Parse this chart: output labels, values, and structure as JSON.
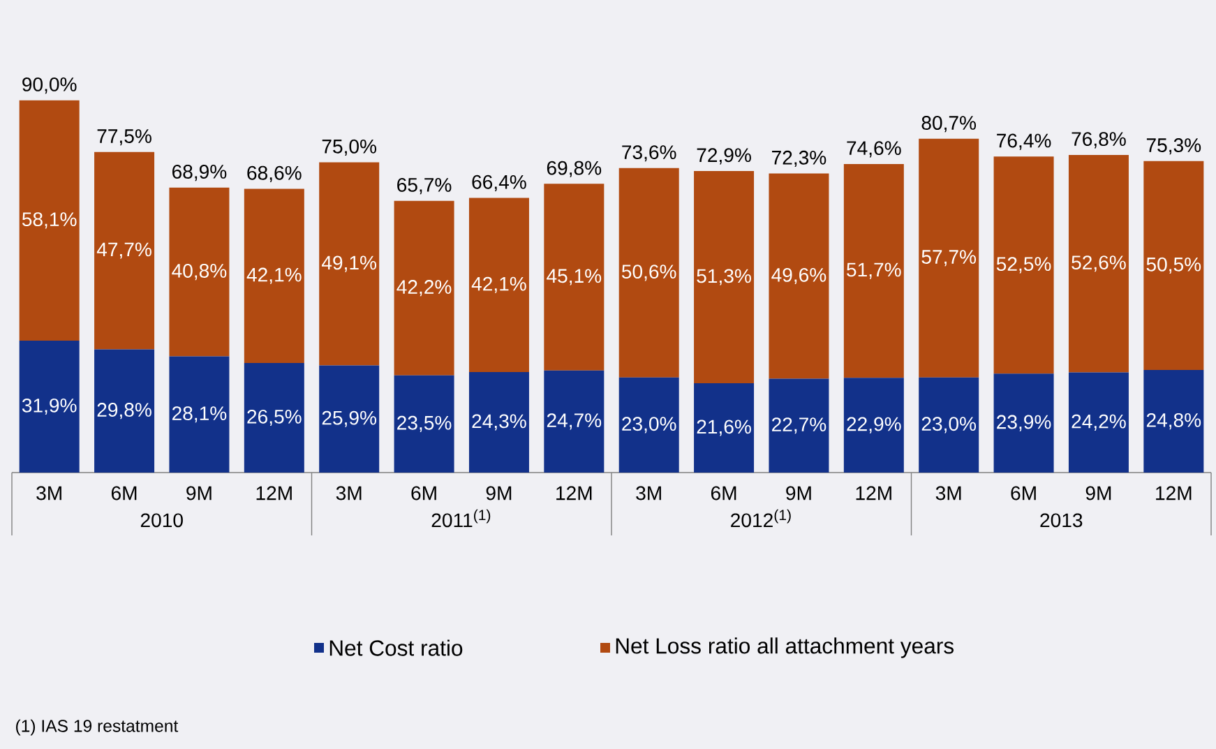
{
  "chart_data": {
    "type": "bar",
    "stacked": true,
    "legend": "bottom",
    "categories": [
      "3M",
      "6M",
      "9M",
      "12M",
      "3M",
      "6M",
      "9M",
      "12M",
      "3M",
      "6M",
      "9M",
      "12M",
      "3M",
      "6M",
      "9M",
      "12M"
    ],
    "series": [
      {
        "name": "Net Cost ratio",
        "color": "#12318a",
        "values": [
          31.9,
          29.8,
          28.1,
          26.5,
          25.9,
          23.5,
          24.3,
          24.7,
          23.0,
          21.6,
          22.7,
          22.9,
          23.0,
          23.9,
          24.2,
          24.8
        ],
        "value_labels": [
          "31,9%",
          "29,8%",
          "28,1%",
          "26,5%",
          "25,9%",
          "23,5%",
          "24,3%",
          "24,7%",
          "23,0%",
          "21,6%",
          "22,7%",
          "22,9%",
          "23,0%",
          "23,9%",
          "24,2%",
          "24,8%"
        ]
      },
      {
        "name": "Net Loss ratio all attachment years",
        "color": "#b14a11",
        "values": [
          58.1,
          47.7,
          40.8,
          42.1,
          49.1,
          42.2,
          42.1,
          45.1,
          50.6,
          51.3,
          49.6,
          51.7,
          57.7,
          52.5,
          52.6,
          50.5
        ],
        "value_labels": [
          "58,1%",
          "47,7%",
          "40,8%",
          "42,1%",
          "49,1%",
          "42,2%",
          "42,1%",
          "45,1%",
          "50,6%",
          "51,3%",
          "49,6%",
          "51,7%",
          "57,7%",
          "52,5%",
          "52,6%",
          "50,5%"
        ]
      }
    ],
    "totals": [
      "90,0%",
      "77,5%",
      "68,9%",
      "68,6%",
      "75,0%",
      "65,7%",
      "66,4%",
      "69,8%",
      "73,6%",
      "72,9%",
      "72,3%",
      "74,6%",
      "80,7%",
      "76,4%",
      "76,8%",
      "75,3%"
    ],
    "annotations": [
      "2010",
      "2011$^{(1)}$",
      "2012$^{(1)}$",
      "2013",
      "(1) IAS 19 restatment"
    ]
  }
}
